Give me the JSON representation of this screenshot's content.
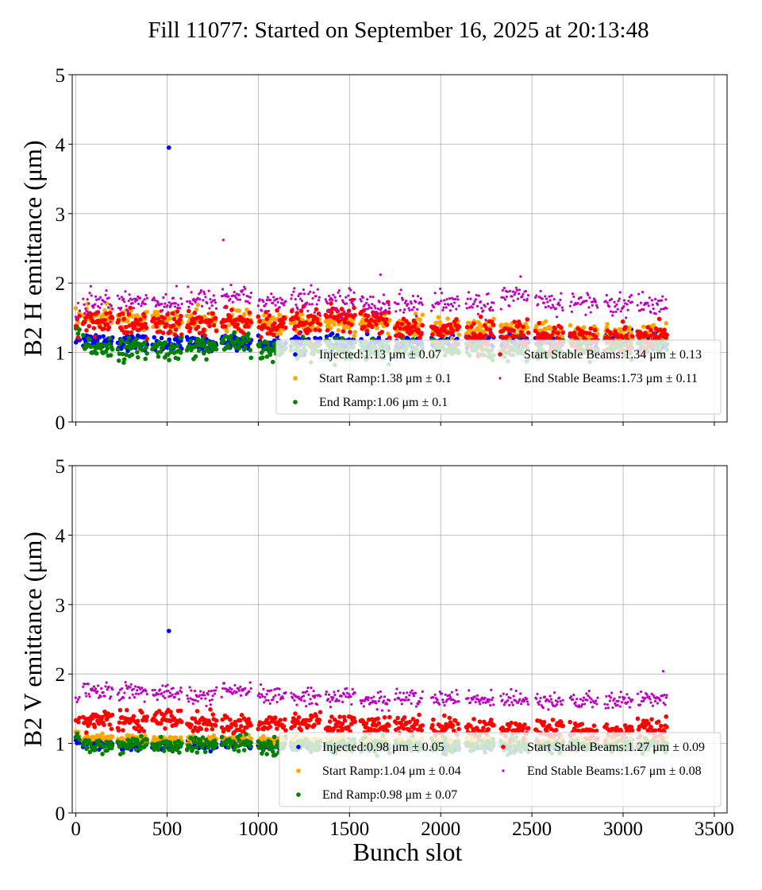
{
  "title": "Fill 11077: Started on September 16, 2025 at 20:13:48",
  "chart_data": [
    {
      "type": "scatter",
      "ylabel": "B2 H emittance (μm)",
      "xlabel": "",
      "xlim": [
        -20,
        3570
      ],
      "ylim": [
        0,
        5
      ],
      "xticks": [
        0,
        500,
        1000,
        1500,
        2000,
        2500,
        3000,
        3500
      ],
      "yticks": [
        0,
        1,
        2,
        3,
        4,
        5
      ],
      "show_xtick_labels": false,
      "grid": true,
      "legend_position": "lower-right",
      "trains": [
        [
          0,
          20
        ],
        [
          40,
          200
        ],
        [
          230,
          390
        ],
        [
          420,
          580
        ],
        [
          610,
          770
        ],
        [
          800,
          960
        ],
        [
          1000,
          1150
        ],
        [
          1180,
          1340
        ],
        [
          1370,
          1530
        ],
        [
          1560,
          1720
        ],
        [
          1750,
          1900
        ],
        [
          1950,
          2100
        ],
        [
          2140,
          2290
        ],
        [
          2330,
          2480
        ],
        [
          2520,
          2670
        ],
        [
          2710,
          2860
        ],
        [
          2900,
          3050
        ],
        [
          3080,
          3240
        ]
      ],
      "series": [
        {
          "name": "Injected",
          "legend": "Injected:1.13 μm ± 0.07",
          "color": "#0000ff",
          "std": 0.07,
          "train_means": [
            1.2,
            1.18,
            1.15,
            1.12,
            1.12,
            1.15,
            1.13,
            1.15,
            1.13,
            1.12,
            1.12,
            1.13,
            1.15,
            1.17,
            1.17,
            1.17,
            1.17,
            1.17
          ],
          "outliers": [
            [
              510,
              3.95
            ]
          ]
        },
        {
          "name": "Start Ramp",
          "legend": "Start Ramp:1.38 μm ± 0.1",
          "color": "#ffa500",
          "std": 0.1,
          "train_means": [
            1.55,
            1.52,
            1.48,
            1.47,
            1.45,
            1.45,
            1.42,
            1.42,
            1.45,
            1.42,
            1.38,
            1.35,
            1.35,
            1.3,
            1.28,
            1.27,
            1.25,
            1.25
          ]
        },
        {
          "name": "End Ramp",
          "legend": "End Ramp:1.06 μm ± 0.1",
          "color": "#008000",
          "std": 0.1,
          "train_means": [
            1.3,
            1.08,
            1.05,
            1.05,
            1.08,
            1.12,
            1.03,
            1.07,
            1.07,
            1.05,
            1.05,
            1.05,
            1.05,
            1.05,
            1.05,
            1.05,
            1.05,
            1.08
          ]
        },
        {
          "name": "Start Stable Beams",
          "legend": "Start Stable Beams:1.34 μm ± 0.13",
          "color": "#ff0000",
          "std": 0.13,
          "train_means": [
            1.45,
            1.45,
            1.4,
            1.4,
            1.42,
            1.45,
            1.37,
            1.42,
            1.5,
            1.42,
            1.35,
            1.3,
            1.27,
            1.27,
            1.25,
            1.22,
            1.2,
            1.25
          ]
        },
        {
          "name": "End Stable Beams",
          "legend": "End Stable Beams:1.73 μm ± 0.11",
          "color": "#bf00bf",
          "std": 0.11,
          "train_means": [
            1.62,
            1.72,
            1.75,
            1.73,
            1.75,
            1.82,
            1.72,
            1.75,
            1.75,
            1.7,
            1.7,
            1.7,
            1.7,
            1.8,
            1.72,
            1.72,
            1.68,
            1.7
          ],
          "outliers": [
            [
              808,
              2.62
            ],
            [
              1670,
              2.12
            ]
          ]
        }
      ]
    },
    {
      "type": "scatter",
      "ylabel": "B2 V emittance (μm)",
      "xlabel": "Bunch slot",
      "xlim": [
        -20,
        3570
      ],
      "ylim": [
        0,
        5
      ],
      "xticks": [
        0,
        500,
        1000,
        1500,
        2000,
        2500,
        3000,
        3500
      ],
      "yticks": [
        0,
        1,
        2,
        3,
        4,
        5
      ],
      "show_xtick_labels": true,
      "grid": true,
      "legend_position": "lower-right",
      "trains": [
        [
          0,
          20
        ],
        [
          40,
          200
        ],
        [
          230,
          390
        ],
        [
          420,
          580
        ],
        [
          610,
          770
        ],
        [
          800,
          960
        ],
        [
          1000,
          1150
        ],
        [
          1180,
          1340
        ],
        [
          1370,
          1530
        ],
        [
          1560,
          1720
        ],
        [
          1750,
          1900
        ],
        [
          1950,
          2100
        ],
        [
          2140,
          2290
        ],
        [
          2330,
          2480
        ],
        [
          2520,
          2670
        ],
        [
          2710,
          2860
        ],
        [
          2900,
          3050
        ],
        [
          3080,
          3240
        ]
      ],
      "series": [
        {
          "name": "Injected",
          "legend": "Injected:0.98 μm ± 0.05",
          "color": "#0000ff",
          "std": 0.05,
          "train_means": [
            1.02,
            1.0,
            0.98,
            0.98,
            0.98,
            1.0,
            0.98,
            0.98,
            0.98,
            0.97,
            0.97,
            0.97,
            0.98,
            0.98,
            0.98,
            0.98,
            0.98,
            0.98
          ],
          "outliers": [
            [
              510,
              2.62
            ]
          ]
        },
        {
          "name": "Start Ramp",
          "legend": "Start Ramp:1.04 μm ± 0.04",
          "color": "#ffa500",
          "std": 0.04,
          "train_means": [
            1.12,
            1.08,
            1.06,
            1.05,
            1.05,
            1.06,
            1.04,
            1.04,
            1.04,
            1.03,
            1.03,
            1.03,
            1.03,
            1.03,
            1.03,
            1.02,
            1.02,
            1.03
          ]
        },
        {
          "name": "End Ramp",
          "legend": "End Ramp:0.98 μm ± 0.07",
          "color": "#008000",
          "std": 0.07,
          "train_means": [
            1.1,
            0.97,
            0.97,
            0.97,
            0.98,
            1.0,
            0.97,
            0.97,
            0.98,
            0.97,
            0.97,
            0.97,
            0.97,
            0.97,
            0.97,
            0.97,
            0.97,
            0.98
          ]
        },
        {
          "name": "Start Stable Beams",
          "legend": "Start Stable Beams:1.27 μm ± 0.09",
          "color": "#ff0000",
          "std": 0.09,
          "train_means": [
            1.35,
            1.33,
            1.33,
            1.35,
            1.3,
            1.28,
            1.27,
            1.3,
            1.27,
            1.25,
            1.27,
            1.25,
            1.22,
            1.22,
            1.2,
            1.18,
            1.18,
            1.22
          ]
        },
        {
          "name": "End Stable Beams",
          "legend": "End Stable Beams:1.67 μm ± 0.08",
          "color": "#bf00bf",
          "std": 0.08,
          "train_means": [
            1.6,
            1.75,
            1.75,
            1.72,
            1.68,
            1.75,
            1.68,
            1.68,
            1.68,
            1.62,
            1.65,
            1.65,
            1.62,
            1.65,
            1.63,
            1.6,
            1.6,
            1.65
          ],
          "outliers": [
            [
              3220,
              2.04
            ]
          ]
        }
      ]
    }
  ]
}
